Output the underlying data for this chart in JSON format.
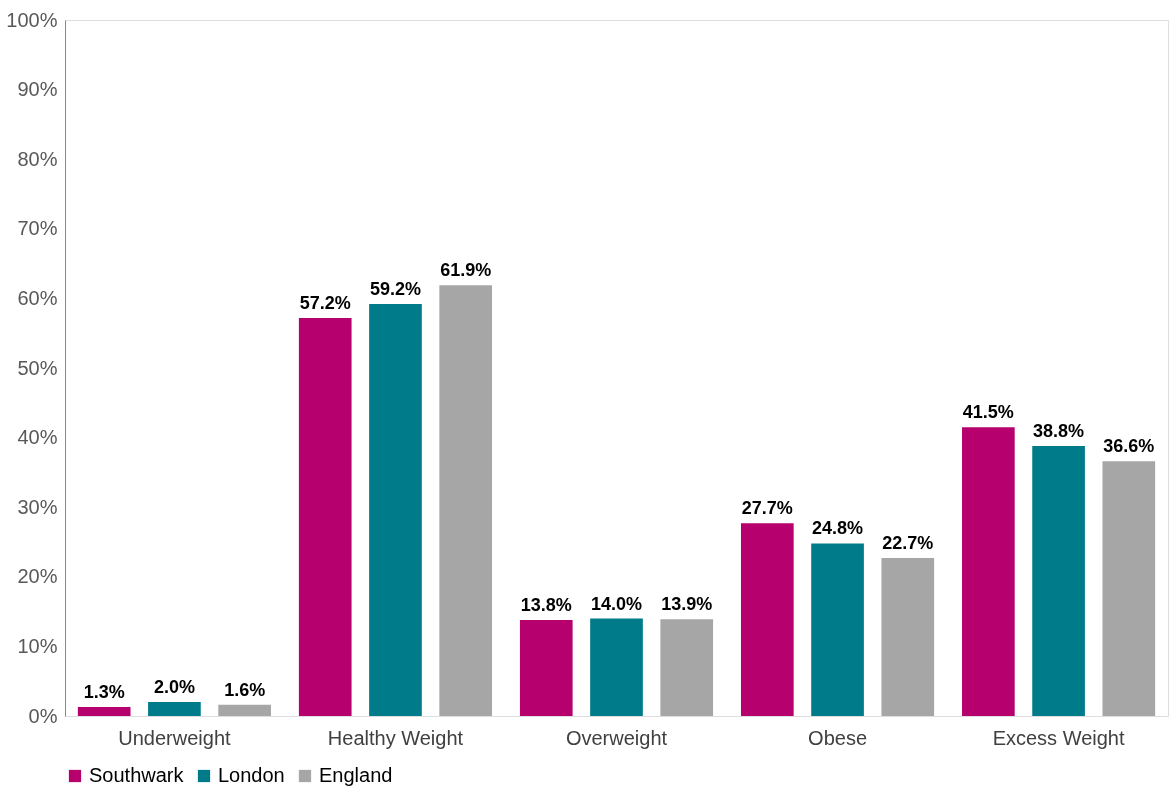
{
  "chart_data": {
    "type": "bar",
    "categories": [
      "Underweight",
      "Healthy Weight",
      "Overweight",
      "Obese",
      "Excess Weight"
    ],
    "series": [
      {
        "name": "Southwark",
        "color": "#b5006e",
        "values": [
          1.3,
          57.2,
          13.8,
          27.7,
          41.5
        ],
        "value_labels": [
          "1.3%",
          "57.2%",
          "13.8%",
          "27.7%",
          "41.5%"
        ]
      },
      {
        "name": "London",
        "color": "#007b8a",
        "values": [
          2.0,
          59.2,
          14.0,
          24.8,
          38.8
        ],
        "value_labels": [
          "2.0%",
          "59.2%",
          "14.0%",
          "24.8%",
          "38.8%"
        ]
      },
      {
        "name": "England",
        "color": "#a6a6a6",
        "values": [
          1.6,
          61.9,
          13.9,
          22.7,
          36.6
        ],
        "value_labels": [
          "1.6%",
          "61.9%",
          "13.9%",
          "22.7%",
          "36.6%"
        ]
      }
    ],
    "ylim": [
      0,
      100
    ],
    "yticks": [
      {
        "value": 0,
        "label": "0%"
      },
      {
        "value": 10,
        "label": "10%"
      },
      {
        "value": 20,
        "label": "20%"
      },
      {
        "value": 30,
        "label": "30%"
      },
      {
        "value": 40,
        "label": "40%"
      },
      {
        "value": 50,
        "label": "50%"
      },
      {
        "value": 60,
        "label": "60%"
      },
      {
        "value": 70,
        "label": "70%"
      },
      {
        "value": 80,
        "label": "80%"
      },
      {
        "value": 90,
        "label": "90%"
      },
      {
        "value": 100,
        "label": "100%"
      }
    ],
    "grid": false,
    "legend": "bottom"
  }
}
